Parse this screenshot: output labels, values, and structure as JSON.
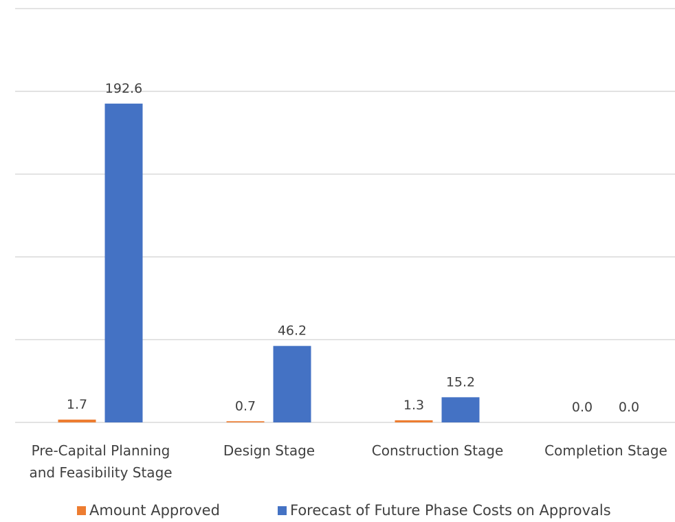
{
  "chart_data": {
    "type": "bar",
    "categories": [
      [
        "Pre-Capital Planning",
        "and Feasibility Stage"
      ],
      [
        "Design Stage"
      ],
      [
        "Construction Stage"
      ],
      [
        "Completion Stage"
      ]
    ],
    "series": [
      {
        "name": "Amount Approved",
        "color": "#ED7D31",
        "values": [
          1.7,
          0.7,
          1.3,
          0.0
        ],
        "labels": [
          "1.7",
          "0.7",
          "1.3",
          "0.0"
        ]
      },
      {
        "name": "Forecast of Future Phase Costs on Approvals",
        "color": "#4472C4",
        "values": [
          192.6,
          46.2,
          15.2,
          0.0
        ],
        "labels": [
          "192.6",
          "46.2",
          "15.2",
          "0.0"
        ]
      }
    ],
    "ylim": [
      0,
      250
    ],
    "ytick_step": 50,
    "grid": true,
    "legend": "bottom"
  }
}
